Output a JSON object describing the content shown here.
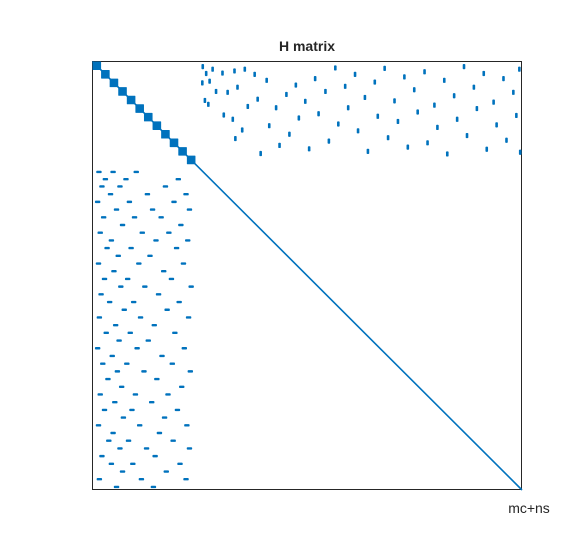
{
  "chart_data": {
    "type": "scatter",
    "title": "H matrix",
    "xlabel": "mc+ns",
    "ylabel": "",
    "matrix_size": 1000,
    "xlim": [
      0,
      1000
    ],
    "ylim": [
      0,
      1000
    ],
    "grid": false,
    "legend": "none",
    "marker_color": "#0072BD",
    "block_size": 240,
    "diagonal_block_entries": 12,
    "series": [
      {
        "name": "",
        "kind": "diagonal",
        "x": [
          1,
          1000
        ],
        "y": [
          1,
          1000
        ]
      },
      {
        "name": "",
        "kind": "upper-right coupling block",
        "rows": [
          240,
          1000
        ],
        "cols": [
          1,
          240
        ],
        "points": [
          {
            "x": 257,
            "y": 12
          },
          {
            "x": 265,
            "y": 28
          },
          {
            "x": 256,
            "y": 50
          },
          {
            "x": 262,
            "y": 91
          },
          {
            "x": 280,
            "y": 18
          },
          {
            "x": 273,
            "y": 46
          },
          {
            "x": 288,
            "y": 70
          },
          {
            "x": 270,
            "y": 100
          },
          {
            "x": 303,
            "y": 27
          },
          {
            "x": 315,
            "y": 72
          },
          {
            "x": 306,
            "y": 125
          },
          {
            "x": 331,
            "y": 22
          },
          {
            "x": 338,
            "y": 60
          },
          {
            "x": 327,
            "y": 135
          },
          {
            "x": 333,
            "y": 180
          },
          {
            "x": 355,
            "y": 18
          },
          {
            "x": 362,
            "y": 105
          },
          {
            "x": 349,
            "y": 160
          },
          {
            "x": 378,
            "y": 30
          },
          {
            "x": 385,
            "y": 88
          },
          {
            "x": 392,
            "y": 215
          },
          {
            "x": 406,
            "y": 44
          },
          {
            "x": 412,
            "y": 150
          },
          {
            "x": 428,
            "y": 108
          },
          {
            "x": 436,
            "y": 196
          },
          {
            "x": 452,
            "y": 77
          },
          {
            "x": 459,
            "y": 170
          },
          {
            "x": 474,
            "y": 55
          },
          {
            "x": 481,
            "y": 132
          },
          {
            "x": 496,
            "y": 93
          },
          {
            "x": 505,
            "y": 204
          },
          {
            "x": 519,
            "y": 40
          },
          {
            "x": 527,
            "y": 122
          },
          {
            "x": 543,
            "y": 70
          },
          {
            "x": 551,
            "y": 186
          },
          {
            "x": 566,
            "y": 15
          },
          {
            "x": 573,
            "y": 146
          },
          {
            "x": 589,
            "y": 58
          },
          {
            "x": 596,
            "y": 108
          },
          {
            "x": 612,
            "y": 30
          },
          {
            "x": 619,
            "y": 162
          },
          {
            "x": 635,
            "y": 84
          },
          {
            "x": 642,
            "y": 210
          },
          {
            "x": 658,
            "y": 48
          },
          {
            "x": 665,
            "y": 128
          },
          {
            "x": 681,
            "y": 16
          },
          {
            "x": 689,
            "y": 178
          },
          {
            "x": 704,
            "y": 92
          },
          {
            "x": 712,
            "y": 140
          },
          {
            "x": 727,
            "y": 36
          },
          {
            "x": 735,
            "y": 200
          },
          {
            "x": 750,
            "y": 66
          },
          {
            "x": 758,
            "y": 118
          },
          {
            "x": 774,
            "y": 24
          },
          {
            "x": 781,
            "y": 190
          },
          {
            "x": 797,
            "y": 102
          },
          {
            "x": 804,
            "y": 154
          },
          {
            "x": 820,
            "y": 44
          },
          {
            "x": 827,
            "y": 216
          },
          {
            "x": 843,
            "y": 80
          },
          {
            "x": 850,
            "y": 135
          },
          {
            "x": 866,
            "y": 12
          },
          {
            "x": 873,
            "y": 173
          },
          {
            "x": 889,
            "y": 60
          },
          {
            "x": 896,
            "y": 110
          },
          {
            "x": 912,
            "y": 28
          },
          {
            "x": 919,
            "y": 205
          },
          {
            "x": 935,
            "y": 95
          },
          {
            "x": 942,
            "y": 148
          },
          {
            "x": 958,
            "y": 40
          },
          {
            "x": 965,
            "y": 184
          },
          {
            "x": 981,
            "y": 72
          },
          {
            "x": 988,
            "y": 126
          },
          {
            "x": 995,
            "y": 18
          },
          {
            "x": 997,
            "y": 212
          }
        ]
      },
      {
        "name": "",
        "kind": "lower-left coupling block",
        "rows": [
          1,
          240
        ],
        "cols": [
          240,
          1000
        ],
        "points": [
          {
            "x": 15,
            "y": 258
          },
          {
            "x": 48,
            "y": 258
          },
          {
            "x": 102,
            "y": 258
          },
          {
            "x": 30,
            "y": 275
          },
          {
            "x": 78,
            "y": 275
          },
          {
            "x": 200,
            "y": 275
          },
          {
            "x": 22,
            "y": 292
          },
          {
            "x": 64,
            "y": 292
          },
          {
            "x": 170,
            "y": 292
          },
          {
            "x": 42,
            "y": 310
          },
          {
            "x": 128,
            "y": 310
          },
          {
            "x": 218,
            "y": 310
          },
          {
            "x": 12,
            "y": 328
          },
          {
            "x": 86,
            "y": 328
          },
          {
            "x": 190,
            "y": 328
          },
          {
            "x": 56,
            "y": 346
          },
          {
            "x": 140,
            "y": 346
          },
          {
            "x": 226,
            "y": 346
          },
          {
            "x": 26,
            "y": 364
          },
          {
            "x": 98,
            "y": 364
          },
          {
            "x": 160,
            "y": 364
          },
          {
            "x": 70,
            "y": 382
          },
          {
            "x": 206,
            "y": 382
          },
          {
            "x": 18,
            "y": 400
          },
          {
            "x": 116,
            "y": 400
          },
          {
            "x": 178,
            "y": 400
          },
          {
            "x": 44,
            "y": 418
          },
          {
            "x": 148,
            "y": 418
          },
          {
            "x": 222,
            "y": 418
          },
          {
            "x": 34,
            "y": 436
          },
          {
            "x": 90,
            "y": 436
          },
          {
            "x": 196,
            "y": 436
          },
          {
            "x": 60,
            "y": 454
          },
          {
            "x": 134,
            "y": 454
          },
          {
            "x": 14,
            "y": 472
          },
          {
            "x": 108,
            "y": 472
          },
          {
            "x": 212,
            "y": 472
          },
          {
            "x": 50,
            "y": 490
          },
          {
            "x": 166,
            "y": 490
          },
          {
            "x": 28,
            "y": 508
          },
          {
            "x": 82,
            "y": 508
          },
          {
            "x": 184,
            "y": 508
          },
          {
            "x": 66,
            "y": 526
          },
          {
            "x": 122,
            "y": 526
          },
          {
            "x": 230,
            "y": 526
          },
          {
            "x": 20,
            "y": 544
          },
          {
            "x": 154,
            "y": 544
          },
          {
            "x": 40,
            "y": 562
          },
          {
            "x": 96,
            "y": 562
          },
          {
            "x": 202,
            "y": 562
          },
          {
            "x": 74,
            "y": 580
          },
          {
            "x": 174,
            "y": 580
          },
          {
            "x": 16,
            "y": 598
          },
          {
            "x": 112,
            "y": 598
          },
          {
            "x": 224,
            "y": 598
          },
          {
            "x": 54,
            "y": 616
          },
          {
            "x": 144,
            "y": 616
          },
          {
            "x": 32,
            "y": 634
          },
          {
            "x": 88,
            "y": 634
          },
          {
            "x": 192,
            "y": 634
          },
          {
            "x": 62,
            "y": 652
          },
          {
            "x": 130,
            "y": 652
          },
          {
            "x": 12,
            "y": 670
          },
          {
            "x": 104,
            "y": 670
          },
          {
            "x": 214,
            "y": 670
          },
          {
            "x": 46,
            "y": 688
          },
          {
            "x": 162,
            "y": 688
          },
          {
            "x": 24,
            "y": 706
          },
          {
            "x": 80,
            "y": 706
          },
          {
            "x": 186,
            "y": 706
          },
          {
            "x": 58,
            "y": 724
          },
          {
            "x": 120,
            "y": 724
          },
          {
            "x": 228,
            "y": 724
          },
          {
            "x": 36,
            "y": 742
          },
          {
            "x": 150,
            "y": 742
          },
          {
            "x": 68,
            "y": 760
          },
          {
            "x": 208,
            "y": 760
          },
          {
            "x": 18,
            "y": 778
          },
          {
            "x": 100,
            "y": 778
          },
          {
            "x": 176,
            "y": 778
          },
          {
            "x": 52,
            "y": 796
          },
          {
            "x": 138,
            "y": 796
          },
          {
            "x": 28,
            "y": 814
          },
          {
            "x": 92,
            "y": 814
          },
          {
            "x": 198,
            "y": 814
          },
          {
            "x": 72,
            "y": 832
          },
          {
            "x": 168,
            "y": 832
          },
          {
            "x": 14,
            "y": 850
          },
          {
            "x": 110,
            "y": 850
          },
          {
            "x": 220,
            "y": 850
          },
          {
            "x": 48,
            "y": 868
          },
          {
            "x": 156,
            "y": 868
          },
          {
            "x": 38,
            "y": 886
          },
          {
            "x": 84,
            "y": 886
          },
          {
            "x": 188,
            "y": 886
          },
          {
            "x": 64,
            "y": 904
          },
          {
            "x": 126,
            "y": 904
          },
          {
            "x": 226,
            "y": 904
          },
          {
            "x": 22,
            "y": 922
          },
          {
            "x": 146,
            "y": 922
          },
          {
            "x": 44,
            "y": 940
          },
          {
            "x": 94,
            "y": 940
          },
          {
            "x": 204,
            "y": 940
          },
          {
            "x": 70,
            "y": 958
          },
          {
            "x": 172,
            "y": 958
          },
          {
            "x": 16,
            "y": 976
          },
          {
            "x": 114,
            "y": 976
          },
          {
            "x": 218,
            "y": 976
          },
          {
            "x": 56,
            "y": 994
          },
          {
            "x": 142,
            "y": 994
          }
        ]
      }
    ]
  }
}
